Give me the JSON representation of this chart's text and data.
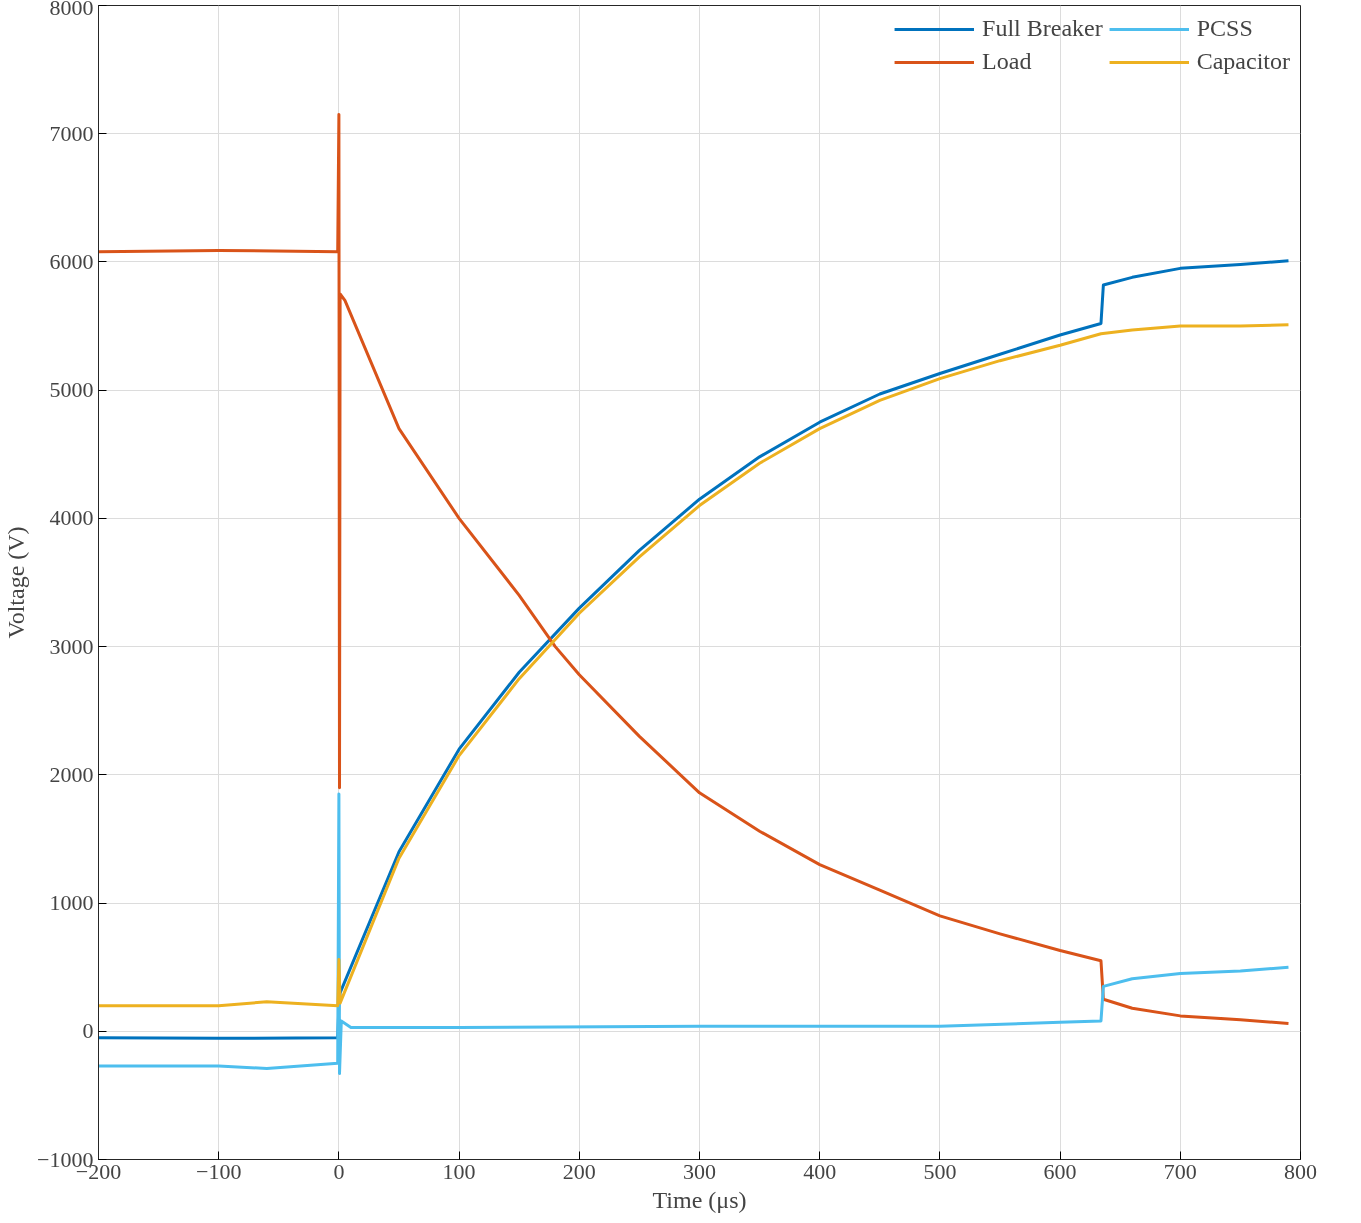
{
  "chart_data": {
    "type": "line",
    "xlabel": "Time (μs)",
    "ylabel": "Voltage (V)",
    "xlim": [
      -200,
      800
    ],
    "ylim": [
      -1000,
      8000
    ],
    "xticks": [
      -200,
      -100,
      0,
      100,
      200,
      300,
      400,
      500,
      600,
      700,
      800
    ],
    "yticks": [
      -1000,
      0,
      1000,
      2000,
      3000,
      4000,
      5000,
      6000,
      7000,
      8000
    ],
    "grid": true,
    "legend": "top right",
    "line_style": "solid",
    "series": [
      {
        "name": "Full Breaker",
        "color": "#0072bd",
        "x": [
          -200,
          -100,
          -1,
          0,
          1,
          50,
          100,
          150,
          200,
          250,
          300,
          350,
          400,
          450,
          500,
          550,
          600,
          634,
          636,
          660,
          700,
          750,
          790
        ],
        "values": [
          -50,
          -55,
          -50,
          200,
          300,
          1400,
          2200,
          2800,
          3300,
          3750,
          4150,
          4480,
          4750,
          4970,
          5130,
          5280,
          5430,
          5520,
          5820,
          5880,
          5950,
          5980,
          6010
        ]
      },
      {
        "name": "Load",
        "color": "#d95319",
        "x": [
          -200,
          -100,
          -1,
          0,
          0.5,
          1,
          5,
          50,
          100,
          150,
          180,
          200,
          250,
          300,
          350,
          400,
          450,
          500,
          550,
          600,
          634,
          636,
          660,
          700,
          750,
          790
        ],
        "values": [
          6080,
          6090,
          6080,
          7150,
          1900,
          5750,
          5700,
          4700,
          4000,
          3400,
          3000,
          2780,
          2300,
          1860,
          1560,
          1300,
          1100,
          900,
          760,
          630,
          550,
          250,
          180,
          120,
          90,
          60
        ]
      },
      {
        "name": "PCSS",
        "color": "#4dbeee",
        "x": [
          -200,
          -100,
          -60,
          -1,
          0,
          0.5,
          2,
          10,
          100,
          300,
          500,
          600,
          634,
          636,
          660,
          700,
          750,
          790
        ],
        "values": [
          -270,
          -270,
          -290,
          -250,
          1850,
          -330,
          80,
          30,
          30,
          40,
          40,
          70,
          80,
          350,
          410,
          450,
          470,
          500
        ]
      },
      {
        "name": "Capacitor",
        "color": "#edb120",
        "x": [
          -200,
          -100,
          -60,
          -1,
          0,
          1,
          50,
          100,
          150,
          200,
          250,
          300,
          350,
          400,
          450,
          500,
          550,
          600,
          634,
          660,
          700,
          750,
          790
        ],
        "values": [
          200,
          200,
          230,
          200,
          560,
          220,
          1350,
          2150,
          2750,
          3260,
          3700,
          4100,
          4430,
          4700,
          4920,
          5090,
          5230,
          5350,
          5440,
          5470,
          5500,
          5500,
          5510
        ]
      }
    ]
  }
}
